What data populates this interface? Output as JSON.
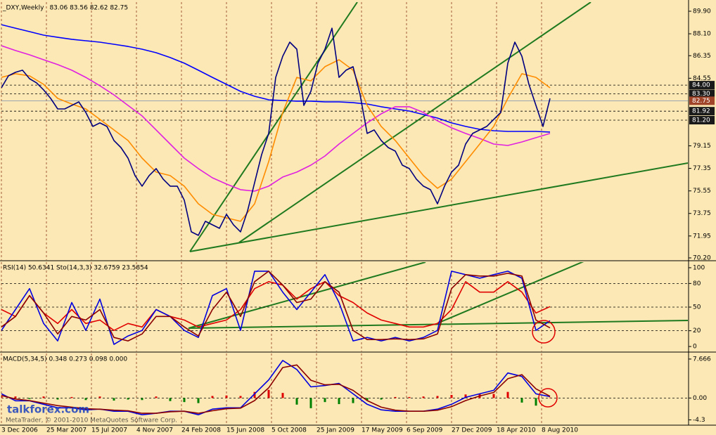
{
  "chart_data": [
    {
      "type": "line",
      "title": "_DXY,Weekly",
      "subtitle": "83.06 83.56 82.62 82.75",
      "xlim": [
        0,
        244
      ],
      "xticks": [
        {
          "value": 0,
          "label": "3 Dec 2006"
        },
        {
          "value": 16,
          "label": "25 Mar 2007"
        },
        {
          "value": 32,
          "label": "15 Jul 2007"
        },
        {
          "value": 48,
          "label": "4 Nov 2007"
        },
        {
          "value": 64,
          "label": "24 Feb 2008"
        },
        {
          "value": 80,
          "label": "15 Jun 2008"
        },
        {
          "value": 96,
          "label": "5 Oct 2008"
        },
        {
          "value": 112,
          "label": "25 Jan 2009"
        },
        {
          "value": 128,
          "label": "17 May 2009"
        },
        {
          "value": 144,
          "label": "6 Sep 2009"
        },
        {
          "value": 160,
          "label": "27 Dec 2009"
        },
        {
          "value": 176,
          "label": "18 Apr 2010"
        },
        {
          "value": 192,
          "label": "8 Aug 2010"
        }
      ],
      "ylim": [
        70.03,
        90.63
      ],
      "yticks": [
        {
          "value": 89.9,
          "label": "89.90"
        },
        {
          "value": 88.1,
          "label": "88.10"
        },
        86.35,
        84.55,
        79.15,
        77.35,
        75.55,
        73.75,
        71.95,
        {
          "value": 70.2,
          "label": "70.20"
        }
      ],
      "levels": [
        {
          "value": 84,
          "label": "84.00"
        },
        {
          "value": 83.3,
          "label": "83.30"
        },
        81.92,
        {
          "value": 81.2,
          "label": "81.20"
        }
      ],
      "price_line": 82.75,
      "x": [
        0,
        2.5,
        5,
        7.5,
        10,
        12.5,
        15,
        17.5,
        20,
        22.5,
        25,
        27.5,
        30,
        32.5,
        35,
        37.5,
        40,
        42.5,
        45,
        47.5,
        50,
        52.5,
        55,
        57.5,
        60,
        62.5,
        65,
        67.5,
        70,
        72.5,
        75,
        77.5,
        80,
        82.5,
        85,
        87.5,
        90,
        92.5,
        95,
        97.5,
        100,
        102.5,
        105,
        107.5,
        110,
        112.5,
        115,
        117.5,
        120,
        122.5,
        125,
        127.5,
        130,
        132.5,
        135,
        137.5,
        140,
        142.5,
        145,
        147.5,
        150,
        152.5,
        155,
        157.5,
        160,
        162.5,
        165,
        167.5,
        170,
        172.5,
        175,
        177.5,
        180,
        182.5,
        185,
        187.5,
        190,
        192.5,
        195
      ],
      "series": [
        {
          "color": "#0000ff",
          "x": [
            0,
            5,
            10,
            15,
            20,
            25,
            30,
            35,
            40,
            45,
            50,
            55,
            60,
            65,
            70,
            75,
            80,
            85,
            90,
            95,
            100,
            105,
            110,
            115,
            120,
            125,
            130,
            135,
            140,
            145,
            150,
            155,
            160,
            165,
            170,
            175,
            180,
            185,
            190,
            195
          ],
          "values": [
            88.83,
            88.55,
            88.27,
            87.99,
            87.82,
            87.66,
            87.54,
            87.43,
            87.26,
            87.09,
            86.87,
            86.59,
            86.2,
            85.75,
            85.19,
            84.62,
            84.06,
            83.5,
            83.11,
            82.83,
            82.77,
            82.72,
            82.72,
            82.66,
            82.66,
            82.6,
            82.49,
            82.27,
            82.1,
            81.93,
            81.65,
            81.37,
            80.98,
            80.7,
            80.47,
            80.36,
            80.3,
            80.3,
            80.3,
            80.25
          ]
        },
        {
          "color": "#e020e0",
          "x": [
            0,
            5,
            10,
            15,
            20,
            25,
            30,
            35,
            40,
            45,
            50,
            55,
            60,
            65,
            70,
            75,
            80,
            85,
            90,
            95,
            100,
            105,
            110,
            115,
            120,
            125,
            130,
            135,
            140,
            145,
            150,
            155,
            160,
            165,
            170,
            175,
            180,
            185,
            190,
            195
          ],
          "values": [
            87.15,
            86.76,
            86.42,
            86.03,
            85.64,
            85.19,
            84.62,
            83.95,
            83.22,
            82.38,
            81.54,
            80.42,
            79.29,
            78.17,
            77.33,
            76.6,
            76.1,
            75.65,
            75.53,
            75.93,
            76.66,
            77.05,
            77.61,
            78.34,
            79.29,
            80.14,
            80.98,
            81.71,
            82.27,
            82.27,
            81.82,
            81.15,
            80.59,
            80.14,
            79.74,
            79.29,
            79.18,
            79.46,
            79.8,
            80.14
          ]
        },
        {
          "color": "#ff8c00",
          "x": [
            0,
            5,
            10,
            15,
            20,
            25,
            30,
            35,
            40,
            45,
            50,
            55,
            60,
            65,
            70,
            75,
            80,
            85,
            90,
            95,
            100,
            105,
            110,
            115,
            120,
            125,
            130,
            135,
            140,
            145,
            150,
            155,
            160,
            165,
            170,
            175,
            180,
            185,
            190,
            195
          ],
          "values": [
            84.62,
            84.91,
            84.74,
            84.06,
            82.94,
            82.49,
            82.1,
            81.26,
            80.42,
            79.58,
            78.17,
            77.05,
            76.77,
            75.93,
            74.52,
            73.68,
            73.4,
            73.12,
            74.52,
            77.89,
            81.82,
            84.62,
            84.34,
            85.47,
            86.03,
            85.19,
            82.38,
            80.7,
            79.58,
            78.17,
            76.77,
            75.76,
            76.49,
            77.89,
            79.29,
            80.7,
            82.94,
            84.91,
            84.62,
            83.78
          ]
        },
        {
          "color": "#000080",
          "values": [
            83.78,
            84.74,
            85.02,
            85.19,
            84.51,
            84.18,
            83.62,
            82.94,
            82.1,
            82.1,
            82.38,
            82.66,
            81.82,
            80.7,
            80.98,
            80.7,
            79.58,
            79.01,
            78.17,
            76.77,
            75.93,
            76.77,
            77.33,
            76.49,
            75.93,
            75.93,
            74.81,
            72.28,
            72.0,
            73.12,
            72.84,
            72.56,
            73.68,
            72.84,
            72.28,
            73.96,
            76.21,
            78.45,
            80.14,
            84.62,
            86.31,
            87.43,
            86.87,
            82.38,
            83.5,
            85.75,
            86.87,
            88.55,
            84.62,
            85.19,
            85.47,
            83.22,
            80.14,
            80.42,
            79.58,
            79.01,
            78.73,
            77.61,
            77.33,
            76.49,
            75.93,
            75.65,
            74.52,
            75.93,
            77.05,
            77.61,
            79.29,
            80.14,
            80.42,
            80.7,
            81.26,
            81.82,
            85.75,
            87.43,
            86.31,
            84.06,
            82.38,
            80.7,
            82.94
          ]
        }
      ]
    },
    {
      "type": "line",
      "title": "RSI(14) 50.6341  Sto(14,3,3) 32.6759 23.5854",
      "ylim": [
        -6.2,
        107.1
      ],
      "yticks": [
        100,
        80,
        50,
        20,
        0
      ],
      "levels": [
        80,
        50,
        20
      ],
      "x": [
        0,
        5,
        10,
        15,
        20,
        25,
        30,
        35,
        40,
        45,
        50,
        55,
        60,
        65,
        70,
        75,
        80,
        85,
        90,
        95,
        100,
        105,
        110,
        115,
        120,
        125,
        130,
        135,
        140,
        145,
        150,
        155,
        160,
        165,
        170,
        175,
        180,
        185,
        190,
        195
      ],
      "series": [
        {
          "color": "#e00000",
          "values": [
            46.9,
            38.1,
            64.6,
            42.5,
            29.2,
            46.9,
            29.2,
            33.6,
            20.4,
            29.2,
            24.8,
            46.9,
            38.1,
            33.6,
            24.8,
            29.2,
            33.6,
            46.9,
            73.5,
            82.3,
            77.9,
            60.2,
            73.5,
            82.3,
            64.6,
            55.8,
            42.5,
            33.6,
            29.2,
            24.8,
            24.8,
            29.2,
            46.9,
            82.3,
            69.0,
            69.0,
            82.3,
            69.0,
            42.5,
            50.6
          ]
        },
        {
          "color": "#0000e0",
          "values": [
            20.4,
            46.9,
            73.5,
            29.2,
            7.1,
            55.8,
            20.4,
            60.2,
            2.7,
            13.3,
            20.4,
            46.9,
            38.1,
            20.4,
            11.5,
            64.6,
            73.5,
            20.4,
            95.6,
            95.6,
            69.0,
            46.9,
            69.0,
            91.2,
            55.8,
            7.1,
            11.5,
            7.1,
            11.5,
            7.1,
            11.5,
            20.4,
            95.6,
            91.2,
            86.7,
            91.2,
            95.6,
            86.7,
            20.4,
            32.7
          ]
        },
        {
          "color": "#8b0000",
          "values": [
            24.8,
            38.1,
            64.6,
            42.5,
            15.9,
            38.1,
            33.6,
            46.9,
            11.5,
            7.1,
            15.9,
            38.1,
            38.1,
            24.8,
            13.3,
            46.9,
            69.0,
            38.1,
            82.3,
            95.6,
            77.9,
            55.8,
            60.2,
            82.3,
            69.0,
            20.4,
            8.8,
            8.8,
            9.7,
            8.8,
            9.7,
            15.9,
            73.5,
            91.2,
            89.4,
            89.4,
            92.9,
            89.4,
            33.6,
            23.6
          ]
        }
      ]
    },
    {
      "type": "line",
      "title": "MACD(5,34,5) 0.348 0.273 0.098 0.000",
      "ylim": [
        -5.34,
        8.76
      ],
      "yticks": [
        7.666,
        {
          "value": 0,
          "label": "0.00"
        },
        -4.3
      ],
      "levels": [
        0
      ],
      "x": [
        0,
        5,
        10,
        15,
        20,
        25,
        30,
        35,
        40,
        45,
        50,
        55,
        60,
        65,
        70,
        75,
        80,
        85,
        90,
        95,
        100,
        105,
        110,
        115,
        120,
        125,
        130,
        135,
        140,
        145,
        150,
        155,
        160,
        165,
        170,
        175,
        180,
        185,
        190,
        195
      ],
      "series": [
        {
          "type": "bar",
          "color": "#e00000",
          "negative_color": "#008000",
          "values": [
            0.4,
            0.3,
            -0.2,
            0.3,
            -0.3,
            0.2,
            -0.4,
            0.3,
            -0.5,
            -0.3,
            -0.4,
            0.3,
            -0.6,
            -0.8,
            -1.0,
            0.4,
            0.5,
            0.4,
            1.2,
            1.6,
            1.0,
            -1.3,
            -2.0,
            -0.8,
            -1.2,
            -1.0,
            -0.4,
            -0.3,
            0.2,
            0.2,
            0.3,
            0.4,
            0.6,
            0.7,
            0.8,
            0.8,
            1.2,
            -0.9,
            -1.5,
            0.1
          ]
        },
        {
          "color": "#0000e0",
          "values": [
            0.82,
            -0.55,
            -0.55,
            -1.23,
            -1.92,
            -1.92,
            -2.33,
            -2.19,
            -2.6,
            -2.6,
            -3.29,
            -3.01,
            -2.6,
            -2.6,
            -3.29,
            -2.19,
            -1.92,
            -1.92,
            0.82,
            3.56,
            7.39,
            5.61,
            2.19,
            2.46,
            2.87,
            0.82,
            -1.23,
            -2.33,
            -2.6,
            -2.6,
            -2.6,
            -2.19,
            -1.23,
            0.14,
            0.82,
            1.51,
            4.93,
            4.24,
            0.82,
            0.27
          ]
        },
        {
          "color": "#8b0000",
          "values": [
            0.5,
            -0.2,
            -0.5,
            -1.0,
            -1.5,
            -1.8,
            -2.1,
            -2.2,
            -2.4,
            -2.5,
            -3.0,
            -3.0,
            -2.7,
            -2.6,
            -3.0,
            -2.5,
            -2.1,
            -2.0,
            -0.5,
            2.0,
            6.0,
            6.5,
            3.5,
            2.6,
            2.7,
            1.5,
            -0.5,
            -1.8,
            -2.4,
            -2.6,
            -2.6,
            -2.4,
            -1.7,
            -0.5,
            0.4,
            1.1,
            3.8,
            4.6,
            1.8,
            0.35
          ]
        }
      ]
    }
  ],
  "watermark": {
    "site": "talkforex.com",
    "copyright": "MetaTrader, © 2001-2010 MetaQuotes Software Corp."
  }
}
